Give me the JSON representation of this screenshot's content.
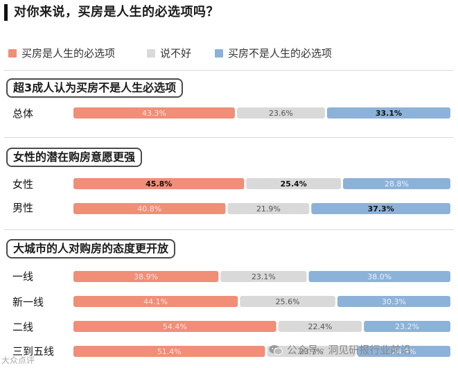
{
  "title": "对你来说，买房是人生的必选项吗？",
  "legend": [
    {
      "label": "买房是人生的必选项",
      "color": "#F08E78"
    },
    {
      "label": "说不好",
      "color": "#D9D9D9"
    },
    {
      "label": "买房不是人生的必选项",
      "color": "#8DB2D9"
    }
  ],
  "sections": [
    {
      "heading": "超3成人认为买房不是人生必选项"
    },
    {
      "heading": "女性的潜在购房意愿更强"
    },
    {
      "heading": "大城市的人对购房的态度更开放"
    }
  ],
  "chart_data": {
    "type": "bar",
    "orientation": "horizontal",
    "stacked": true,
    "unit": "%",
    "series": [
      {
        "name": "买房是人生的必选项",
        "color": "#F08E78"
      },
      {
        "name": "说不好",
        "color": "#D9D9D9"
      },
      {
        "name": "买房不是人生的必选项",
        "color": "#8DB2D9"
      }
    ],
    "rows": [
      {
        "category": "总体",
        "section": 0,
        "values": [
          43.3,
          23.6,
          33.1
        ],
        "labels": [
          "43.3%",
          "23.6%",
          "33.1%"
        ],
        "bold": [
          false,
          false,
          true
        ]
      },
      {
        "category": "女性",
        "section": 1,
        "values": [
          45.8,
          25.4,
          28.8
        ],
        "labels": [
          "45.8%",
          "25.4%",
          "28.8%"
        ],
        "bold": [
          true,
          true,
          false
        ]
      },
      {
        "category": "男性",
        "section": 1,
        "values": [
          40.8,
          21.9,
          37.3
        ],
        "labels": [
          "40.8%",
          "21.9%",
          "37.3%"
        ],
        "bold": [
          false,
          false,
          true
        ]
      },
      {
        "category": "一线",
        "section": 2,
        "values": [
          38.9,
          23.1,
          38.0
        ],
        "labels": [
          "38.9%",
          "23.1%",
          "38.0%"
        ],
        "bold": [
          false,
          false,
          false
        ]
      },
      {
        "category": "新一线",
        "section": 2,
        "values": [
          44.1,
          25.6,
          30.3
        ],
        "labels": [
          "44.1%",
          "25.6%",
          "30.3%"
        ],
        "bold": [
          false,
          false,
          false
        ]
      },
      {
        "category": "二线",
        "section": 2,
        "values": [
          54.4,
          22.4,
          23.2
        ],
        "labels": [
          "54.4%",
          "22.4%",
          "23.2%"
        ],
        "bold": [
          false,
          false,
          false
        ]
      },
      {
        "category": "三到五线",
        "section": 2,
        "values": [
          51.4,
          23.7,
          24.9
        ],
        "labels": [
          "51.4%",
          "23.7%",
          "24.9%"
        ],
        "bold": [
          false,
          false,
          false
        ]
      }
    ]
  },
  "watermarks": {
    "left": "大众点评",
    "right": "公众号 · 洞见研报行业前沿",
    "right_icon": "wechat-icon"
  }
}
